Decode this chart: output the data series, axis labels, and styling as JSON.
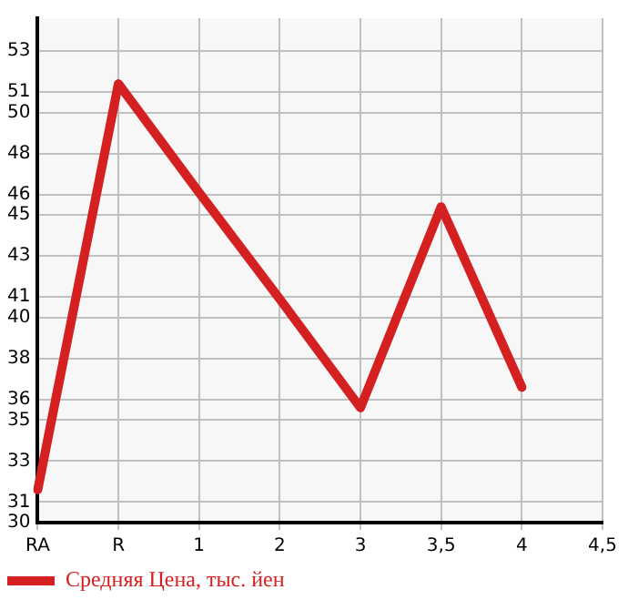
{
  "chart_data": {
    "type": "line",
    "categories": [
      "RA",
      "R",
      "1",
      "2",
      "3",
      "3,5",
      "4",
      "4,5"
    ],
    "series": [
      {
        "name": "Средняя Цена, тыс. йен",
        "color": "#d42020",
        "values": [
          31.6,
          51.4,
          46.1,
          40.9,
          35.6,
          45.4,
          36.6,
          null
        ]
      }
    ],
    "ylim": [
      30,
      54.6
    ],
    "yticks": [
      30,
      31,
      33,
      35,
      36,
      38,
      40,
      41,
      43,
      45,
      46,
      48,
      50,
      51,
      53
    ],
    "grid": true,
    "legend": "bottom left",
    "marker": "none",
    "line_style": "solid"
  }
}
